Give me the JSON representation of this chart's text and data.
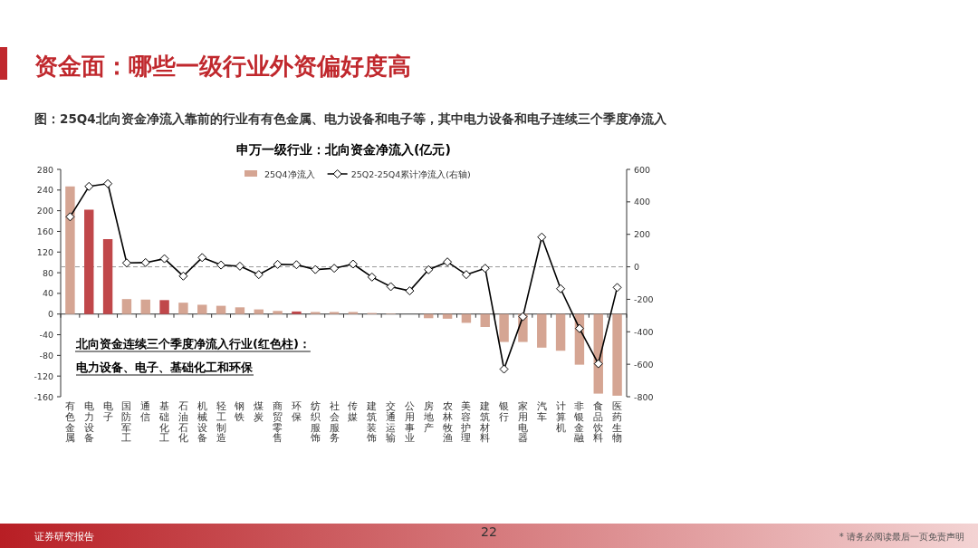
{
  "chart_data": {
    "type": "bar",
    "title": "申万一级行业：北向资金净流入(亿元)",
    "annotations": [
      "资金面：哪些一级行业外资偏好度高",
      "图：25Q4北向资金净流入靠前的行业有有色金属、电力设备和电子等，其中电力设备和电子连续三个季度净流入",
      "北向资金连续三个季度净流入行业(红色柱)：",
      "电力设备、电子、基础化工和环保",
      "证券研究报告",
      "22",
      "* 请务必阅读最后一页免责声明"
    ],
    "categories": [
      "有色金属",
      "电力设备",
      "电子",
      "国防军工",
      "通信",
      "基础化工",
      "石油石化",
      "机械设备",
      "轻工制造",
      "钢铁",
      "煤炭",
      "商贸零售",
      "环保",
      "纺织服饰",
      "社会服务",
      "传媒",
      "建筑装饰",
      "交通运输",
      "公用事业",
      "房地产",
      "农林牧渔",
      "美容护理",
      "建筑材料",
      "银行",
      "家用电器",
      "汽车",
      "计算机",
      "非银金融",
      "食品饮料",
      "医药生物"
    ],
    "series": [
      {
        "name": "25Q4净流入",
        "color": "#d5a593",
        "colors": [
          "#d5a593",
          "#c0474a",
          "#c0474a",
          "#d5a593",
          "#d5a593",
          "#c0474a",
          "#d5a593",
          "#d5a593",
          "#d5a593",
          "#d5a593",
          "#d5a593",
          "#d5a593",
          "#c0474a",
          "#d5a593",
          "#d5a593",
          "#d5a593",
          "#d5a593",
          "#d5a593",
          "#d5a593",
          "#d5a593",
          "#d5a593",
          "#d5a593",
          "#d5a593",
          "#d5a593",
          "#d5a593",
          "#d5a593",
          "#d5a593",
          "#d5a593",
          "#d5a593",
          "#d5a593"
        ],
        "values": [
          247,
          202,
          145,
          29,
          28,
          27,
          22,
          18,
          16,
          13,
          9,
          6,
          5,
          4,
          4,
          4,
          2,
          1,
          0,
          -8,
          -9,
          -17,
          -25,
          -54,
          -54,
          -65,
          -71,
          -98,
          -154,
          -158
        ]
      },
      {
        "name": "25Q2-25Q4累计净流入(右轴)",
        "type": "line",
        "axis": "y2",
        "color": "#000000",
        "values": [
          308,
          495,
          512,
          24,
          26,
          50,
          -57,
          57,
          11,
          4,
          -48,
          15,
          13,
          -17,
          -9,
          17,
          -63,
          -122,
          -148,
          -18,
          30,
          -48,
          -9,
          -630,
          -307,
          183,
          -135,
          -380,
          -597,
          -127
        ]
      }
    ],
    "ylim": [
      -160,
      280
    ],
    "yticks": [
      -160,
      -120,
      -80,
      -40,
      0,
      40,
      80,
      120,
      160,
      200,
      240,
      280
    ],
    "y2lim": [
      -800,
      600
    ],
    "y2ticks": [
      -800,
      -600,
      -400,
      -200,
      0,
      200,
      400,
      600
    ],
    "ref_lines": [
      {
        "axis": "y2",
        "value": 0,
        "color": "#999999",
        "line_style": "dashed"
      }
    ],
    "marker": "diamond",
    "legend": "top right",
    "grid": false
  }
}
